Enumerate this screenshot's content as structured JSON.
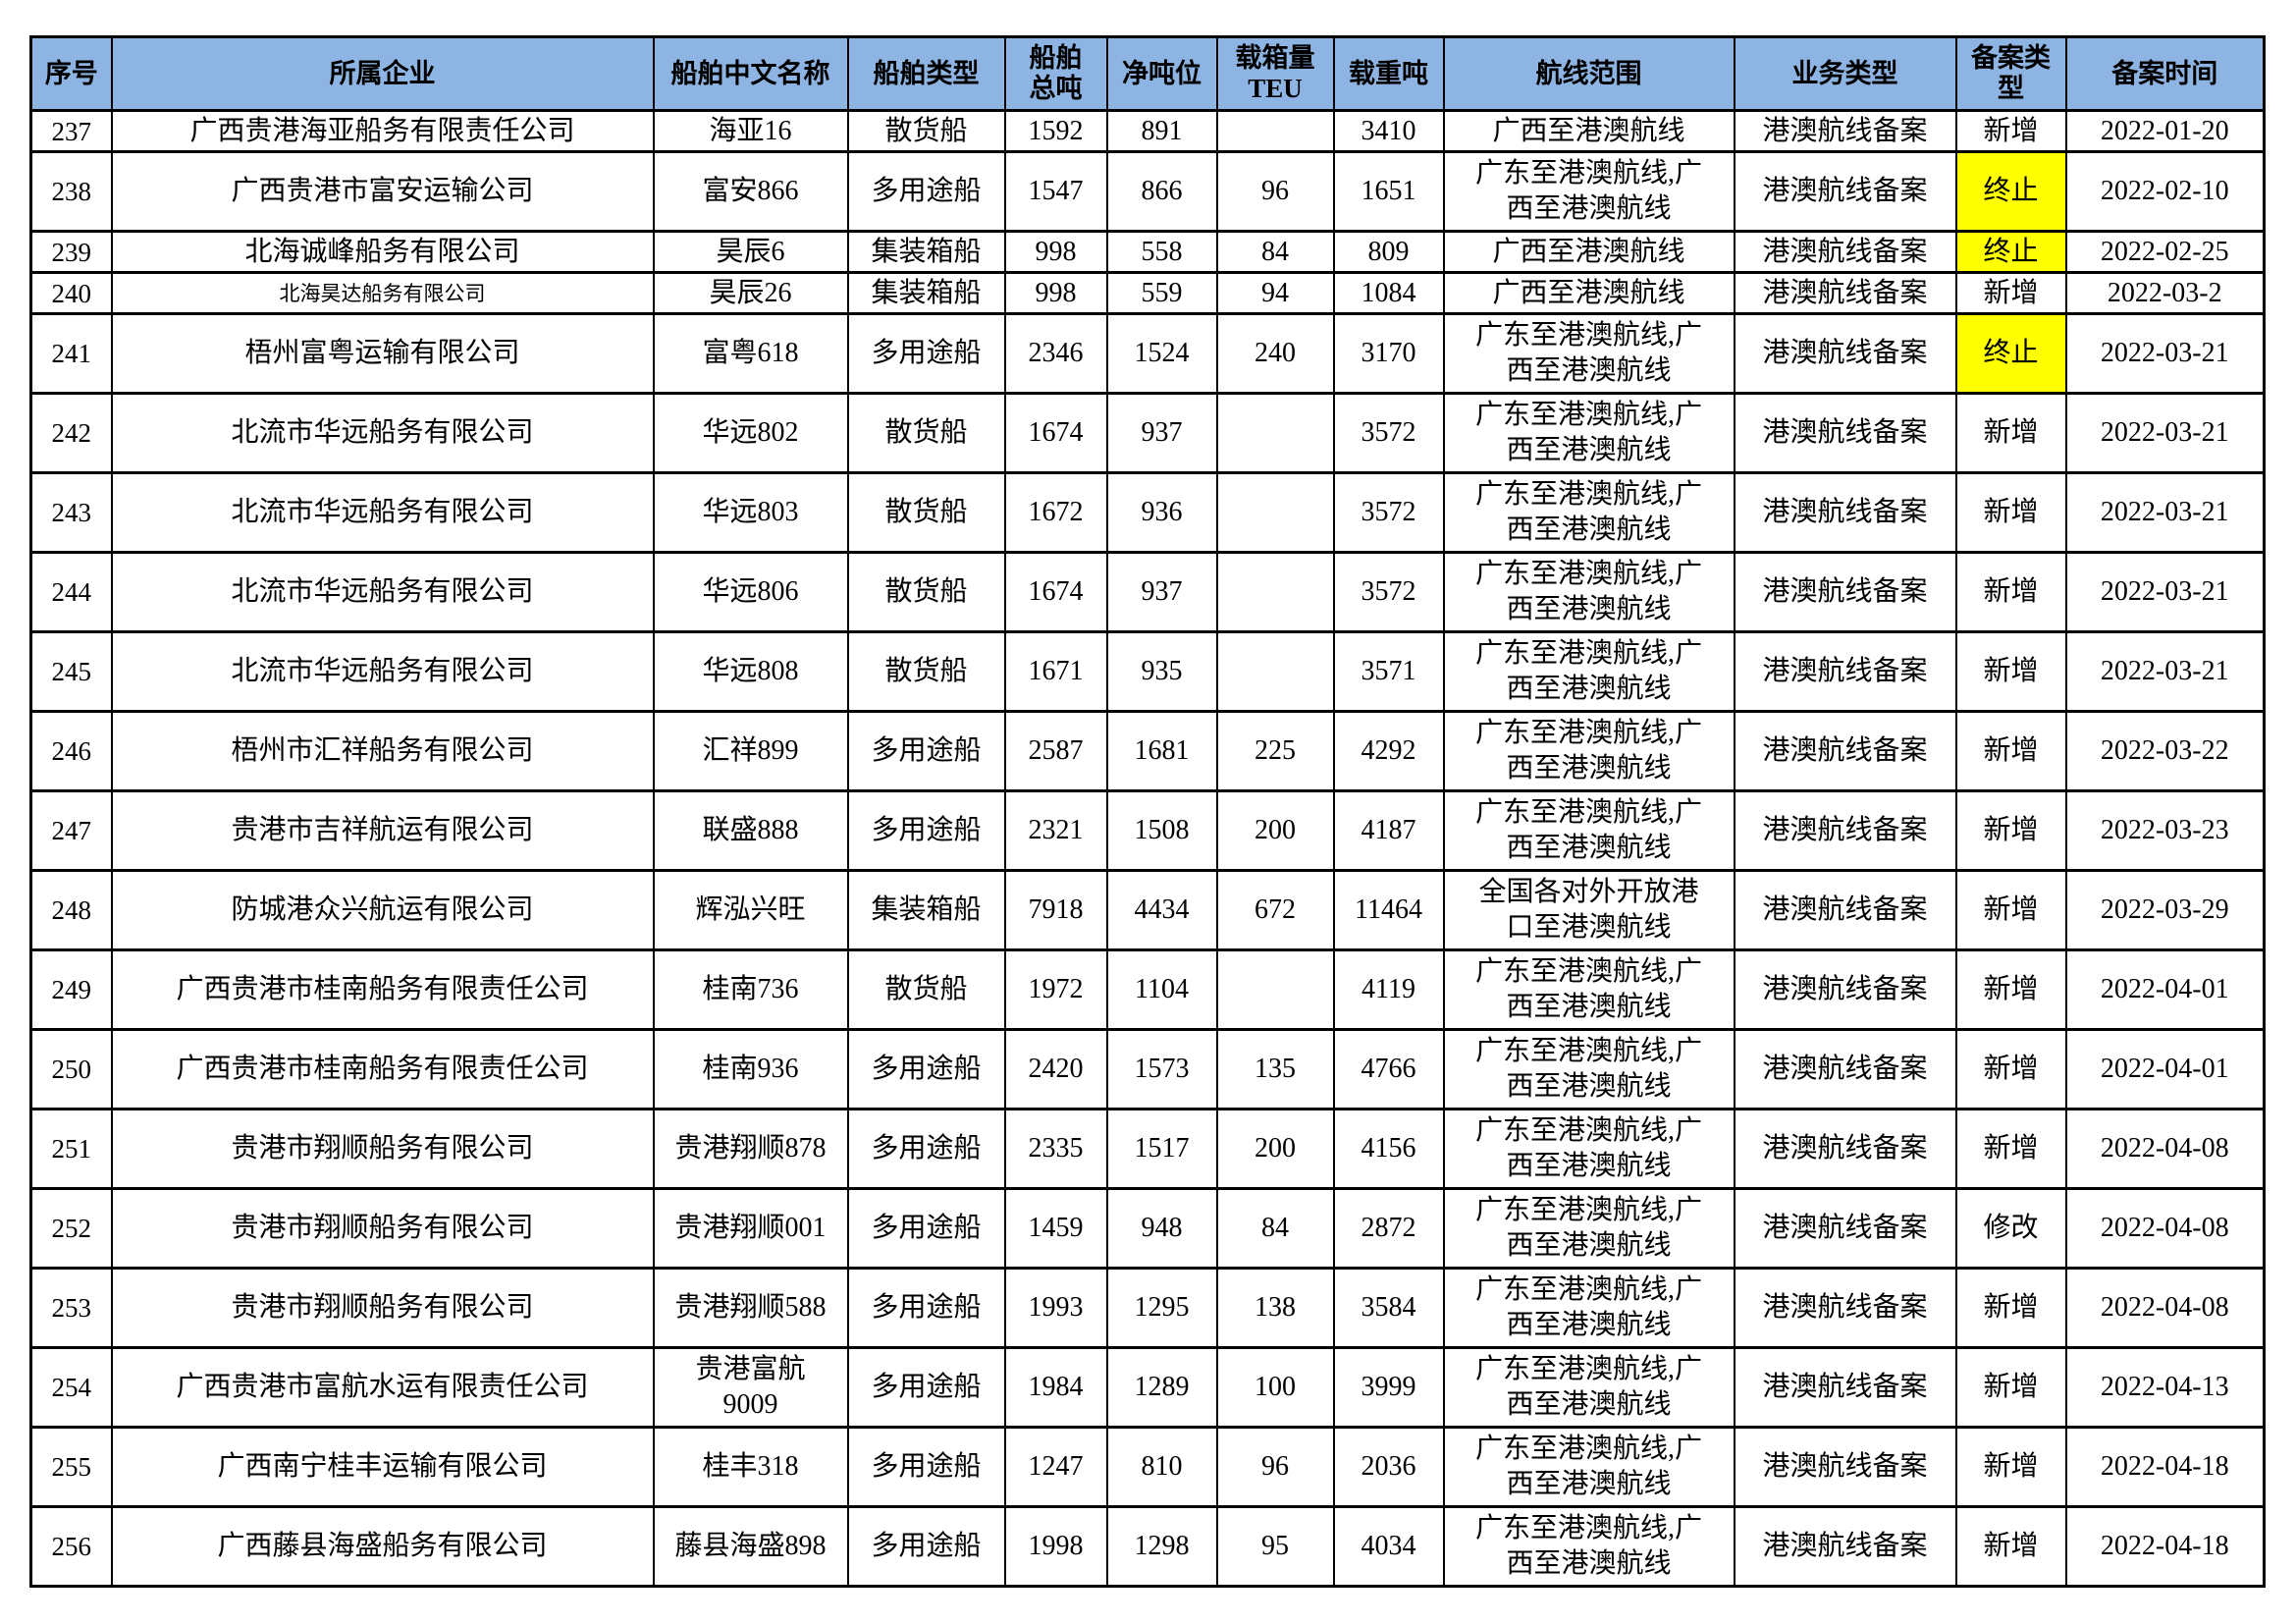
{
  "colors": {
    "header_bg": "#8DB4E2",
    "terminate_highlight": "#FFFF00",
    "border": "#000000",
    "text": "#000000"
  },
  "table": {
    "columns": [
      {
        "key": "seq",
        "label": "序号"
      },
      {
        "key": "company",
        "label": "所属企业"
      },
      {
        "key": "ship",
        "label": "船舶中文名称"
      },
      {
        "key": "type",
        "label": "船舶类型"
      },
      {
        "key": "gross",
        "label": "船舶\n总吨"
      },
      {
        "key": "net",
        "label": "净吨位"
      },
      {
        "key": "teu",
        "label": "载箱量\nTEU"
      },
      {
        "key": "dwt",
        "label": "载重吨"
      },
      {
        "key": "route",
        "label": "航线范围"
      },
      {
        "key": "biz",
        "label": "业务类型"
      },
      {
        "key": "filing",
        "label": "备案类\n型"
      },
      {
        "key": "date",
        "label": "备案时间"
      }
    ],
    "rows": [
      {
        "seq": "237",
        "company": "广西贵港海亚船务有限责任公司",
        "ship": "海亚16",
        "type": "散货船",
        "gross": "1592",
        "net": "891",
        "teu": "",
        "dwt": "3410",
        "route": "广西至港澳航线",
        "biz": "港澳航线备案",
        "filing": "新增",
        "date": "2022-01-20",
        "filing_highlighted": false,
        "company_small": false
      },
      {
        "seq": "238",
        "company": "广西贵港市富安运输公司",
        "ship": "富安866",
        "type": "多用途船",
        "gross": "1547",
        "net": "866",
        "teu": "96",
        "dwt": "1651",
        "route": "广东至港澳航线,广\n西至港澳航线",
        "biz": "港澳航线备案",
        "filing": "终止",
        "date": "2022-02-10",
        "filing_highlighted": true,
        "company_small": false
      },
      {
        "seq": "239",
        "company": "北海诚峰船务有限公司",
        "ship": "昊辰6",
        "type": "集装箱船",
        "gross": "998",
        "net": "558",
        "teu": "84",
        "dwt": "809",
        "route": "广西至港澳航线",
        "biz": "港澳航线备案",
        "filing": "终止",
        "date": "2022-02-25",
        "filing_highlighted": true,
        "company_small": false
      },
      {
        "seq": "240",
        "company": "北海昊达船务有限公司",
        "ship": "昊辰26",
        "type": "集装箱船",
        "gross": "998",
        "net": "559",
        "teu": "94",
        "dwt": "1084",
        "route": "广西至港澳航线",
        "biz": "港澳航线备案",
        "filing": "新增",
        "date": "2022-03-2",
        "filing_highlighted": false,
        "company_small": true
      },
      {
        "seq": "241",
        "company": "梧州富粤运输有限公司",
        "ship": "富粤618",
        "type": "多用途船",
        "gross": "2346",
        "net": "1524",
        "teu": "240",
        "dwt": "3170",
        "route": "广东至港澳航线,广\n西至港澳航线",
        "biz": "港澳航线备案",
        "filing": "终止",
        "date": "2022-03-21",
        "filing_highlighted": true,
        "company_small": false
      },
      {
        "seq": "242",
        "company": "北流市华远船务有限公司",
        "ship": "华远802",
        "type": "散货船",
        "gross": "1674",
        "net": "937",
        "teu": "",
        "dwt": "3572",
        "route": "广东至港澳航线,广\n西至港澳航线",
        "biz": "港澳航线备案",
        "filing": "新增",
        "date": "2022-03-21",
        "filing_highlighted": false,
        "company_small": false
      },
      {
        "seq": "243",
        "company": "北流市华远船务有限公司",
        "ship": "华远803",
        "type": "散货船",
        "gross": "1672",
        "net": "936",
        "teu": "",
        "dwt": "3572",
        "route": "广东至港澳航线,广\n西至港澳航线",
        "biz": "港澳航线备案",
        "filing": "新增",
        "date": "2022-03-21",
        "filing_highlighted": false,
        "company_small": false
      },
      {
        "seq": "244",
        "company": "北流市华远船务有限公司",
        "ship": "华远806",
        "type": "散货船",
        "gross": "1674",
        "net": "937",
        "teu": "",
        "dwt": "3572",
        "route": "广东至港澳航线,广\n西至港澳航线",
        "biz": "港澳航线备案",
        "filing": "新增",
        "date": "2022-03-21",
        "filing_highlighted": false,
        "company_small": false
      },
      {
        "seq": "245",
        "company": "北流市华远船务有限公司",
        "ship": "华远808",
        "type": "散货船",
        "gross": "1671",
        "net": "935",
        "teu": "",
        "dwt": "3571",
        "route": "广东至港澳航线,广\n西至港澳航线",
        "biz": "港澳航线备案",
        "filing": "新增",
        "date": "2022-03-21",
        "filing_highlighted": false,
        "company_small": false
      },
      {
        "seq": "246",
        "company": "梧州市汇祥船务有限公司",
        "ship": "汇祥899",
        "type": "多用途船",
        "gross": "2587",
        "net": "1681",
        "teu": "225",
        "dwt": "4292",
        "route": "广东至港澳航线,广\n西至港澳航线",
        "biz": "港澳航线备案",
        "filing": "新增",
        "date": "2022-03-22",
        "filing_highlighted": false,
        "company_small": false
      },
      {
        "seq": "247",
        "company": "贵港市吉祥航运有限公司",
        "ship": "联盛888",
        "type": "多用途船",
        "gross": "2321",
        "net": "1508",
        "teu": "200",
        "dwt": "4187",
        "route": "广东至港澳航线,广\n西至港澳航线",
        "biz": "港澳航线备案",
        "filing": "新增",
        "date": "2022-03-23",
        "filing_highlighted": false,
        "company_small": false
      },
      {
        "seq": "248",
        "company": "防城港众兴航运有限公司",
        "ship": "辉泓兴旺",
        "type": "集装箱船",
        "gross": "7918",
        "net": "4434",
        "teu": "672",
        "dwt": "11464",
        "route": "全国各对外开放港\n口至港澳航线",
        "biz": "港澳航线备案",
        "filing": "新增",
        "date": "2022-03-29",
        "filing_highlighted": false,
        "company_small": false
      },
      {
        "seq": "249",
        "company": "广西贵港市桂南船务有限责任公司",
        "ship": "桂南736",
        "type": "散货船",
        "gross": "1972",
        "net": "1104",
        "teu": "",
        "dwt": "4119",
        "route": "广东至港澳航线,广\n西至港澳航线",
        "biz": "港澳航线备案",
        "filing": "新增",
        "date": "2022-04-01",
        "filing_highlighted": false,
        "company_small": false
      },
      {
        "seq": "250",
        "company": "广西贵港市桂南船务有限责任公司",
        "ship": "桂南936",
        "type": "多用途船",
        "gross": "2420",
        "net": "1573",
        "teu": "135",
        "dwt": "4766",
        "route": "广东至港澳航线,广\n西至港澳航线",
        "biz": "港澳航线备案",
        "filing": "新增",
        "date": "2022-04-01",
        "filing_highlighted": false,
        "company_small": false
      },
      {
        "seq": "251",
        "company": "贵港市翔顺船务有限公司",
        "ship": "贵港翔顺878",
        "type": "多用途船",
        "gross": "2335",
        "net": "1517",
        "teu": "200",
        "dwt": "4156",
        "route": "广东至港澳航线,广\n西至港澳航线",
        "biz": "港澳航线备案",
        "filing": "新增",
        "date": "2022-04-08",
        "filing_highlighted": false,
        "company_small": false
      },
      {
        "seq": "252",
        "company": "贵港市翔顺船务有限公司",
        "ship": "贵港翔顺001",
        "type": "多用途船",
        "gross": "1459",
        "net": "948",
        "teu": "84",
        "dwt": "2872",
        "route": "广东至港澳航线,广\n西至港澳航线",
        "biz": "港澳航线备案",
        "filing": "修改",
        "date": "2022-04-08",
        "filing_highlighted": false,
        "company_small": false
      },
      {
        "seq": "253",
        "company": "贵港市翔顺船务有限公司",
        "ship": "贵港翔顺588",
        "type": "多用途船",
        "gross": "1993",
        "net": "1295",
        "teu": "138",
        "dwt": "3584",
        "route": "广东至港澳航线,广\n西至港澳航线",
        "biz": "港澳航线备案",
        "filing": "新增",
        "date": "2022-04-08",
        "filing_highlighted": false,
        "company_small": false
      },
      {
        "seq": "254",
        "company": "广西贵港市富航水运有限责任公司",
        "ship": "贵港富航\n9009",
        "type": "多用途船",
        "gross": "1984",
        "net": "1289",
        "teu": "100",
        "dwt": "3999",
        "route": "广东至港澳航线,广\n西至港澳航线",
        "biz": "港澳航线备案",
        "filing": "新增",
        "date": "2022-04-13",
        "filing_highlighted": false,
        "company_small": false
      },
      {
        "seq": "255",
        "company": "广西南宁桂丰运输有限公司",
        "ship": "桂丰318",
        "type": "多用途船",
        "gross": "1247",
        "net": "810",
        "teu": "96",
        "dwt": "2036",
        "route": "广东至港澳航线,广\n西至港澳航线",
        "biz": "港澳航线备案",
        "filing": "新增",
        "date": "2022-04-18",
        "filing_highlighted": false,
        "company_small": false
      },
      {
        "seq": "256",
        "company": "广西藤县海盛船务有限公司",
        "ship": "藤县海盛898",
        "type": "多用途船",
        "gross": "1998",
        "net": "1298",
        "teu": "95",
        "dwt": "4034",
        "route": "广东至港澳航线,广\n西至港澳航线",
        "biz": "港澳航线备案",
        "filing": "新增",
        "date": "2022-04-18",
        "filing_highlighted": false,
        "company_small": false
      }
    ]
  }
}
